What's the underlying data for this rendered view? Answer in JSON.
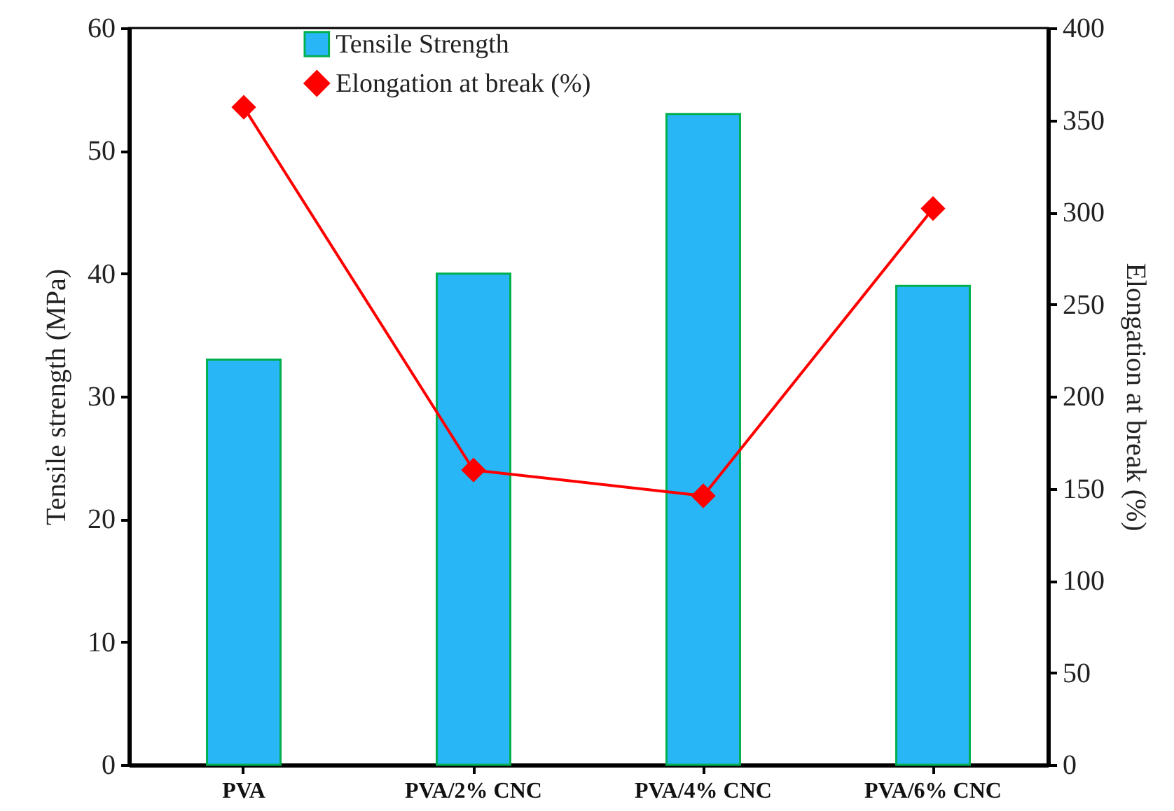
{
  "chart_data": {
    "type": "bar",
    "ylabel": "Tensile strength (MPa)",
    "y2label": "Elongation at break (%)",
    "categories": [
      "PVA",
      "PVA/2% CNC",
      "PVA/4% CNC",
      "PVA/6% CNC"
    ],
    "series": [
      {
        "name": "Tensile Strength",
        "color": "#29b6f6",
        "values": [
          33,
          40,
          53,
          39
        ]
      },
      {
        "name": "Elongation at break (%)",
        "type": "line",
        "axis": "y2",
        "color": "#ff0000",
        "marker": "diamond",
        "values": [
          357,
          160,
          146,
          302
        ]
      }
    ],
    "ylim": [
      0,
      60
    ],
    "yticks": [
      0,
      10,
      20,
      30,
      40,
      50,
      60
    ],
    "y2lim": [
      0,
      400
    ],
    "y2ticks": [
      0,
      50,
      100,
      150,
      200,
      250,
      300,
      350,
      400
    ],
    "legend": "top",
    "grid": false
  }
}
